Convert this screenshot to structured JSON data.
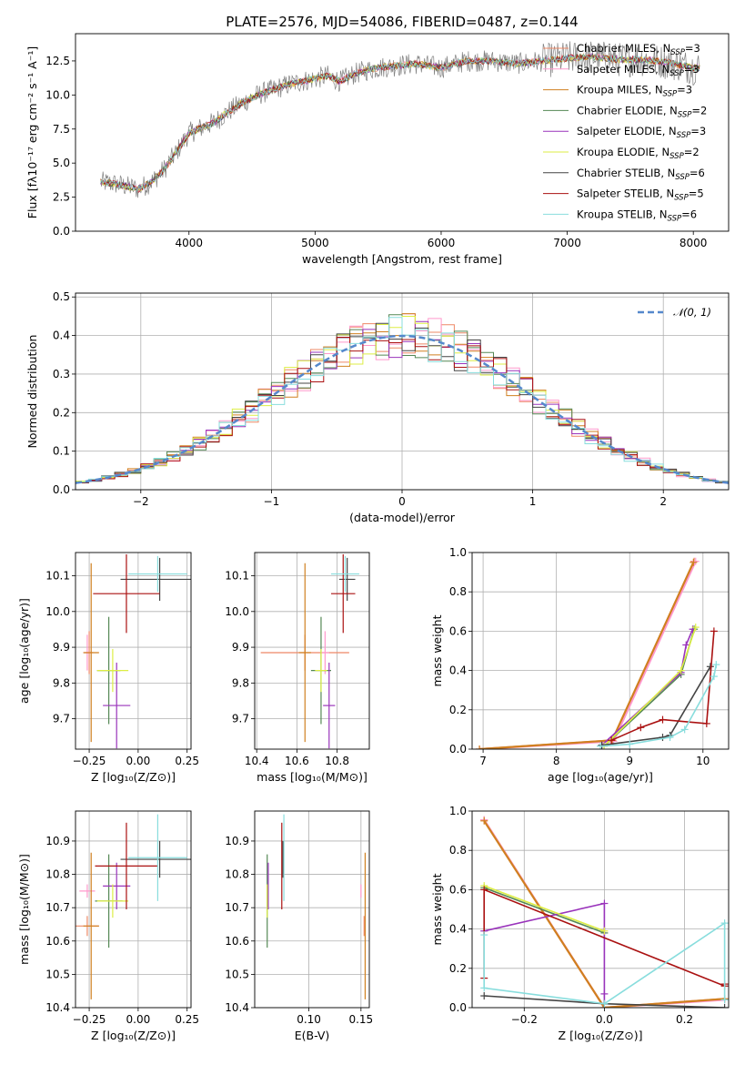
{
  "figure_title": "PLATE=2576, MJD=54086, FIBERID=0487, z=0.144",
  "colors": {
    "chabrier_miles": "#ee8866",
    "salpeter_miles": "#ff99cc",
    "kroupa_miles": "#d08020",
    "chabrier_elodie": "#558855",
    "salpeter_elodie": "#9933bb",
    "kroupa_elodie": "#ddee44",
    "chabrier_stelib": "#444444",
    "salpeter_stelib": "#aa1111",
    "kroupa_stelib": "#88dddd",
    "normal_curve": "#5588cc"
  },
  "chart_data": [
    {
      "id": "spectrum",
      "type": "line",
      "xlabel": "wavelength [Angstrom, rest frame]",
      "ylabel": "Flux [fλ10⁻¹⁷ erg cm⁻² s⁻¹ A⁻¹]",
      "xlim": [
        3100,
        8280
      ],
      "ylim": [
        0,
        14.5
      ],
      "xticks": [
        "4000",
        "5000",
        "6000",
        "7000",
        "8000"
      ],
      "yticks": [
        "0.0",
        "2.5",
        "5.0",
        "7.5",
        "10.0",
        "12.5"
      ],
      "grid": false,
      "legend_position": "upper right",
      "legend": [
        {
          "label": "Chabrier MILES, N",
          "sub": "SSP",
          "tail": "=3",
          "color_key": "chabrier_miles"
        },
        {
          "label": "Salpeter MILES, N",
          "sub": "SSP",
          "tail": "=3",
          "color_key": "salpeter_miles"
        },
        {
          "label": "Kroupa MILES, N",
          "sub": "SSP",
          "tail": "=3",
          "color_key": "kroupa_miles"
        },
        {
          "label": "Chabrier ELODIE, N",
          "sub": "SSP",
          "tail": "=2",
          "color_key": "chabrier_elodie"
        },
        {
          "label": "Salpeter ELODIE, N",
          "sub": "SSP",
          "tail": "=3",
          "color_key": "salpeter_elodie"
        },
        {
          "label": "Kroupa ELODIE, N",
          "sub": "SSP",
          "tail": "=2",
          "color_key": "kroupa_elodie"
        },
        {
          "label": "Chabrier STELIB, N",
          "sub": "SSP",
          "tail": "=6",
          "color_key": "chabrier_stelib"
        },
        {
          "label": "Salpeter STELIB, N",
          "sub": "SSP",
          "tail": "=5",
          "color_key": "salpeter_stelib"
        },
        {
          "label": "Kroupa STELIB, N",
          "sub": "SSP",
          "tail": "=6",
          "color_key": "kroupa_stelib"
        }
      ],
      "continuum": {
        "x": [
          3300,
          3400,
          3500,
          3600,
          3700,
          3800,
          3900,
          4000,
          4100,
          4200,
          4300,
          4400,
          4500,
          4600,
          4700,
          4800,
          4900,
          5000,
          5100,
          5200,
          5300,
          5400,
          5500,
          5600,
          5800,
          6000,
          6200,
          6400,
          6600,
          6800,
          7000,
          7200,
          7400,
          7600,
          7800,
          8000
        ],
        "y": [
          3.6,
          3.5,
          3.3,
          3.1,
          3.6,
          4.5,
          5.8,
          7.2,
          7.6,
          8.0,
          8.7,
          9.3,
          9.8,
          10.2,
          10.5,
          10.8,
          11.0,
          11.2,
          11.4,
          11.0,
          11.5,
          11.8,
          12.0,
          12.1,
          12.3,
          12.0,
          12.5,
          12.5,
          12.3,
          12.5,
          12.7,
          12.8,
          12.6,
          12.6,
          12.4,
          12.0
        ]
      }
    },
    {
      "id": "residuals",
      "type": "histogram",
      "xlabel": "(data-model)/error",
      "ylabel": "Normed distribution",
      "xlim": [
        -2.5,
        2.5
      ],
      "ylim": [
        0,
        0.51
      ],
      "xticks": [
        "−2",
        "−1",
        "0",
        "1",
        "2"
      ],
      "yticks": [
        "0.0",
        "0.1",
        "0.2",
        "0.3",
        "0.4",
        "0.5"
      ],
      "grid": true,
      "legend_position": "upper right",
      "normal_label": "𝒩(0, 1)",
      "bin_width": 0.1
    },
    {
      "id": "age_vs_Z",
      "type": "scatter",
      "xlabel": "Z [log₁₀(Z/Z⊙)]",
      "ylabel": "age  [log₁₀(age/yr)]",
      "xlim": [
        -0.32,
        0.27
      ],
      "ylim": [
        9.615,
        10.165
      ],
      "xticks": [
        "−0.25",
        "0.00",
        "0.25"
      ],
      "yticks": [
        "9.7",
        "9.8",
        "9.9",
        "10.0",
        "10.1"
      ],
      "grid": true,
      "points": [
        {
          "color_key": "chabrier_miles",
          "x": -0.25,
          "y": 9.885,
          "xerr": 0.02,
          "yerr": 0.06
        },
        {
          "color_key": "salpeter_miles",
          "x": -0.26,
          "y": 9.885,
          "xerr": 0.02,
          "yerr": 0.05
        },
        {
          "color_key": "kroupa_miles",
          "x": -0.24,
          "y": 9.885,
          "xerr": 0.04,
          "yerr": 0.25
        },
        {
          "color_key": "chabrier_elodie",
          "x": -0.15,
          "y": 9.835,
          "xerr": 0.06,
          "yerr": 0.15
        },
        {
          "color_key": "salpeter_elodie",
          "x": -0.11,
          "y": 9.737,
          "xerr": 0.07,
          "yerr": 0.12
        },
        {
          "color_key": "kroupa_elodie",
          "x": -0.13,
          "y": 9.835,
          "xerr": 0.08,
          "yerr": 0.06
        },
        {
          "color_key": "chabrier_stelib",
          "x": 0.11,
          "y": 10.09,
          "xerr": 0.2,
          "yerr": 0.06
        },
        {
          "color_key": "salpeter_stelib",
          "x": -0.06,
          "y": 10.05,
          "xerr": 0.17,
          "yerr": 0.11
        },
        {
          "color_key": "kroupa_stelib",
          "x": 0.1,
          "y": 10.105,
          "xerr": 0.15,
          "yerr": 0.05
        }
      ]
    },
    {
      "id": "age_vs_mass",
      "type": "scatter",
      "xlabel": "mass [log₁₀(M/M⊙)]",
      "ylabel": "",
      "xlim": [
        10.39,
        10.96
      ],
      "ylim": [
        9.615,
        10.165
      ],
      "xticks": [
        "10.4",
        "10.6",
        "10.8"
      ],
      "yticks": [
        "9.7",
        "9.8",
        "9.9",
        "10.0",
        "10.1"
      ],
      "grid": true,
      "points": [
        {
          "color_key": "chabrier_miles",
          "x": 10.64,
          "y": 9.885,
          "xerr": 0.22,
          "yerr": 0.05
        },
        {
          "color_key": "salpeter_miles",
          "x": 10.74,
          "y": 9.885,
          "xerr": 0.02,
          "yerr": 0.06
        },
        {
          "color_key": "kroupa_miles",
          "x": 10.64,
          "y": 9.885,
          "xerr": 0.03,
          "yerr": 0.25
        },
        {
          "color_key": "chabrier_elodie",
          "x": 10.72,
          "y": 9.835,
          "xerr": 0.05,
          "yerr": 0.15
        },
        {
          "color_key": "salpeter_elodie",
          "x": 10.76,
          "y": 9.737,
          "xerr": 0.03,
          "yerr": 0.12
        },
        {
          "color_key": "kroupa_elodie",
          "x": 10.72,
          "y": 9.835,
          "xerr": 0.03,
          "yerr": 0.06
        },
        {
          "color_key": "chabrier_stelib",
          "x": 10.85,
          "y": 10.09,
          "xerr": 0.04,
          "yerr": 0.06
        },
        {
          "color_key": "salpeter_stelib",
          "x": 10.83,
          "y": 10.05,
          "xerr": 0.06,
          "yerr": 0.11
        },
        {
          "color_key": "kroupa_stelib",
          "x": 10.84,
          "y": 10.105,
          "xerr": 0.07,
          "yerr": 0.05
        }
      ]
    },
    {
      "id": "mass_weight_vs_age",
      "type": "line",
      "xlabel": "age  [log₁₀(age/yr)]",
      "ylabel": "mass weight",
      "xlim": [
        6.85,
        10.35
      ],
      "ylim": [
        0,
        1.0
      ],
      "xticks": [
        "7",
        "8",
        "9",
        "10"
      ],
      "yticks": [
        "0.0",
        "0.2",
        "0.4",
        "0.6",
        "0.8",
        "1.0"
      ],
      "grid": true,
      "series": [
        {
          "color_key": "chabrier_miles",
          "x": [
            6.95,
            8.77,
            9.88
          ],
          "y": [
            0.0,
            0.045,
            0.955
          ]
        },
        {
          "color_key": "salpeter_miles",
          "x": [
            6.95,
            8.78,
            9.9
          ],
          "y": [
            0.0,
            0.04,
            0.955
          ]
        },
        {
          "color_key": "kroupa_miles",
          "x": [
            6.95,
            8.76,
            9.87
          ],
          "y": [
            0.0,
            0.045,
            0.95
          ]
        },
        {
          "color_key": "chabrier_elodie",
          "x": [
            8.65,
            9.7,
            9.88
          ],
          "y": [
            0.015,
            0.38,
            0.61
          ]
        },
        {
          "color_key": "salpeter_elodie",
          "x": [
            8.62,
            9.7,
            9.77,
            9.86
          ],
          "y": [
            0.02,
            0.39,
            0.53,
            0.61
          ]
        },
        {
          "color_key": "kroupa_elodie",
          "x": [
            8.65,
            9.7,
            9.9
          ],
          "y": [
            0.015,
            0.4,
            0.62
          ]
        },
        {
          "color_key": "chabrier_stelib",
          "x": [
            8.62,
            9.45,
            9.55,
            10.1
          ],
          "y": [
            0.02,
            0.06,
            0.07,
            0.42
          ]
        },
        {
          "color_key": "salpeter_stelib",
          "x": [
            8.75,
            9.15,
            9.45,
            10.05,
            10.15
          ],
          "y": [
            0.045,
            0.11,
            0.15,
            0.13,
            0.6
          ]
        },
        {
          "color_key": "kroupa_stelib",
          "x": [
            8.6,
            9.0,
            9.55,
            9.75,
            10.15,
            10.18
          ],
          "y": [
            0.015,
            0.025,
            0.06,
            0.1,
            0.37,
            0.43
          ]
        }
      ]
    },
    {
      "id": "mass_vs_Z",
      "type": "scatter",
      "xlabel": "Z [log₁₀(Z/Z⊙)]",
      "ylabel": "mass [log₁₀(M/M⊙)]",
      "xlim": [
        -0.32,
        0.27
      ],
      "ylim": [
        10.4,
        10.99
      ],
      "xticks": [
        "−0.25",
        "0.00",
        "0.25"
      ],
      "yticks": [
        "10.4",
        "10.5",
        "10.6",
        "10.7",
        "10.8",
        "10.9"
      ],
      "grid": true,
      "points": [
        {
          "color_key": "chabrier_miles",
          "x": -0.26,
          "y": 10.645,
          "xerr": 0.06,
          "yerr": 0.03
        },
        {
          "color_key": "salpeter_miles",
          "x": -0.26,
          "y": 10.75,
          "xerr": 0.04,
          "yerr": 0.02
        },
        {
          "color_key": "kroupa_miles",
          "x": -0.24,
          "y": 10.645,
          "xerr": 0.04,
          "yerr": 0.22
        },
        {
          "color_key": "chabrier_elodie",
          "x": -0.15,
          "y": 10.72,
          "xerr": 0.07,
          "yerr": 0.14
        },
        {
          "color_key": "salpeter_elodie",
          "x": -0.11,
          "y": 10.765,
          "xerr": 0.07,
          "yerr": 0.07
        },
        {
          "color_key": "kroupa_elodie",
          "x": -0.13,
          "y": 10.72,
          "xerr": 0.08,
          "yerr": 0.05
        },
        {
          "color_key": "chabrier_stelib",
          "x": 0.11,
          "y": 10.845,
          "xerr": 0.2,
          "yerr": 0.055
        },
        {
          "color_key": "salpeter_stelib",
          "x": -0.06,
          "y": 10.825,
          "xerr": 0.16,
          "yerr": 0.13
        },
        {
          "color_key": "kroupa_stelib",
          "x": 0.1,
          "y": 10.85,
          "xerr": 0.15,
          "yerr": 0.13
        }
      ]
    },
    {
      "id": "mass_vs_ebv",
      "type": "scatter",
      "xlabel": "E(B-V)",
      "ylabel": "",
      "xlim": [
        0.048,
        0.158
      ],
      "ylim": [
        10.4,
        10.99
      ],
      "xticks": [
        "0.10",
        "0.15"
      ],
      "yticks": [
        "10.4",
        "10.5",
        "10.6",
        "10.7",
        "10.8",
        "10.9"
      ],
      "grid": true,
      "points": [
        {
          "color_key": "chabrier_miles",
          "x": 0.153,
          "y": 10.645,
          "xerr": 0.0,
          "yerr": 0.03
        },
        {
          "color_key": "salpeter_miles",
          "x": 0.15,
          "y": 10.75,
          "xerr": 0.0,
          "yerr": 0.02
        },
        {
          "color_key": "kroupa_miles",
          "x": 0.154,
          "y": 10.645,
          "xerr": 0.0,
          "yerr": 0.22
        },
        {
          "color_key": "chabrier_elodie",
          "x": 0.06,
          "y": 10.72,
          "xerr": 0.0,
          "yerr": 0.14
        },
        {
          "color_key": "salpeter_elodie",
          "x": 0.061,
          "y": 10.765,
          "xerr": 0.0,
          "yerr": 0.07
        },
        {
          "color_key": "kroupa_elodie",
          "x": 0.06,
          "y": 10.72,
          "xerr": 0.0,
          "yerr": 0.05
        },
        {
          "color_key": "chabrier_stelib",
          "x": 0.075,
          "y": 10.845,
          "xerr": 0.0,
          "yerr": 0.055
        },
        {
          "color_key": "salpeter_stelib",
          "x": 0.074,
          "y": 10.825,
          "xerr": 0.0,
          "yerr": 0.13
        },
        {
          "color_key": "kroupa_stelib",
          "x": 0.076,
          "y": 10.85,
          "xerr": 0.0,
          "yerr": 0.13
        }
      ]
    },
    {
      "id": "mass_weight_vs_Z",
      "type": "line",
      "xlabel": "Z [log₁₀(Z/Z⊙)]",
      "ylabel": "mass weight",
      "xlim": [
        -0.33,
        0.31
      ],
      "ylim": [
        0,
        1.0
      ],
      "xticks": [
        "−0.2",
        "0.0",
        "0.2"
      ],
      "yticks": [
        "0.0",
        "0.2",
        "0.4",
        "0.6",
        "0.8",
        "1.0"
      ],
      "grid": true,
      "series": [
        {
          "color_key": "chabrier_miles",
          "x": [
            -0.3,
            0.0,
            0.3
          ],
          "y": [
            0.955,
            0.0,
            0.045
          ]
        },
        {
          "color_key": "salpeter_miles",
          "x": [
            -0.3,
            0.0,
            0.3
          ],
          "y": [
            0.955,
            0.0,
            0.04
          ]
        },
        {
          "color_key": "kroupa_miles",
          "x": [
            -0.3,
            0.0,
            0.3
          ],
          "y": [
            0.95,
            0.0,
            0.045
          ]
        },
        {
          "color_key": "chabrier_elodie",
          "x": [
            -0.3,
            0.0
          ],
          "y": [
            0.61,
            0.38
          ]
        },
        {
          "color_key": "salpeter_elodie",
          "x": [
            -0.3,
            0.0,
            0.0,
            0.0
          ],
          "y": [
            0.39,
            0.53,
            0.07,
            0.02
          ]
        },
        {
          "color_key": "kroupa_elodie",
          "x": [
            -0.3,
            0.0
          ],
          "y": [
            0.62,
            0.39
          ]
        },
        {
          "color_key": "chabrier_stelib",
          "x": [
            -0.3,
            0.0,
            0.3
          ],
          "y": [
            0.06,
            0.02,
            0.0
          ]
        },
        {
          "color_key": "salpeter_stelib",
          "x": [
            -0.3,
            -0.3,
            0.3,
            0.3
          ],
          "y": [
            0.15,
            0.6,
            0.11,
            0.12
          ]
        },
        {
          "color_key": "kroupa_stelib",
          "x": [
            -0.3,
            -0.3,
            0.0,
            0.3,
            0.3
          ],
          "y": [
            0.37,
            0.1,
            0.02,
            0.43,
            0.04
          ]
        }
      ]
    }
  ]
}
